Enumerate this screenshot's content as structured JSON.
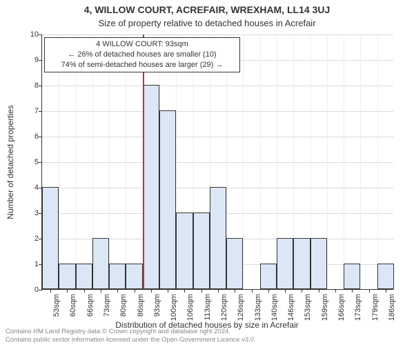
{
  "title_main": "4, WILLOW COURT, ACREFAIR, WREXHAM, LL14 3UJ",
  "title_sub": "Size of property relative to detached houses in Acrefair",
  "ylabel": "Number of detached properties",
  "xlabel": "Distribution of detached houses by size in Acrefair",
  "chart": {
    "type": "histogram",
    "background_color": "#ffffff",
    "grid_color": "#d9d9d9",
    "bar_fill": "#dbe7f5",
    "bar_border": "#333333",
    "marker_color": "#d62728",
    "ylim": [
      0,
      10
    ],
    "ytick_step": 1,
    "label_fontsize": 12,
    "tick_fontsize": 11,
    "title_fontsize": 14,
    "bar_width_ratio": 1.0,
    "categories": [
      "53sqm",
      "60sqm",
      "66sqm",
      "73sqm",
      "80sqm",
      "86sqm",
      "93sqm",
      "100sqm",
      "106sqm",
      "113sqm",
      "120sqm",
      "126sqm",
      "133sqm",
      "140sqm",
      "146sqm",
      "153sqm",
      "159sqm",
      "166sqm",
      "173sqm",
      "179sqm",
      "186sqm"
    ],
    "values": [
      4,
      1,
      1,
      2,
      1,
      1,
      8,
      7,
      3,
      3,
      4,
      2,
      0,
      1,
      2,
      2,
      2,
      0,
      1,
      0,
      1
    ],
    "marker_index": 6
  },
  "annotation": {
    "lines": [
      "4 WILLOW COURT: 93sqm",
      "← 26% of detached houses are smaller (10)",
      "74% of semi-detached houses are larger (29) →"
    ]
  },
  "footer": {
    "line1": "Contains HM Land Registry data © Crown copyright and database right 2024.",
    "line2": "Contains public sector information licensed under the Open Government Licence v3.0."
  }
}
